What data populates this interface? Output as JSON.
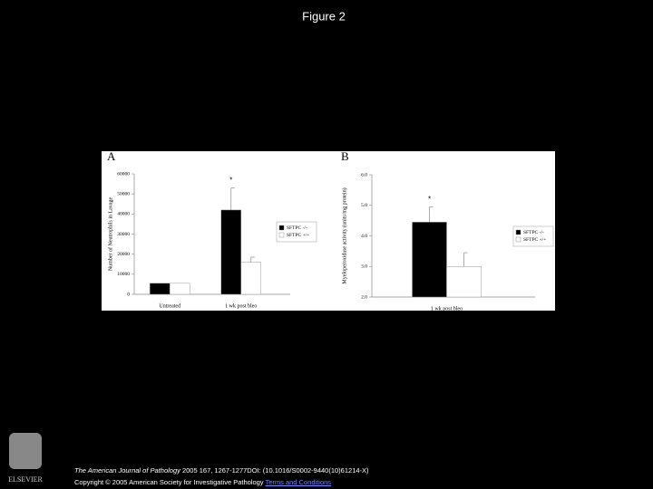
{
  "title": "Figure 2",
  "chart_data": [
    {
      "type": "bar",
      "panel": "A",
      "ylabel": "Number of Neutrophils in Lavage",
      "categories": [
        "Untreated",
        "1 wk post bleo"
      ],
      "series": [
        {
          "name": "SFTPC -/-",
          "color": "#000000",
          "values": [
            5500,
            42000
          ],
          "errors": [
            0,
            11000
          ]
        },
        {
          "name": "SFTPC +/+",
          "color": "#ffffff",
          "values": [
            5500,
            16000
          ],
          "errors": [
            0,
            2500
          ]
        }
      ],
      "annotation": "*",
      "ylim": [
        0,
        60000
      ],
      "yticks": [
        0,
        10000,
        20000,
        30000,
        40000,
        50000,
        60000
      ]
    },
    {
      "type": "bar",
      "panel": "B",
      "ylabel": "Myeloperoxidase activity (units/mg protein)",
      "categories": [
        "1 wk post bleo"
      ],
      "series": [
        {
          "name": "SFTPC -/-",
          "color": "#000000",
          "values": [
            4.45
          ],
          "errors": [
            0.5
          ]
        },
        {
          "name": "SFTPC +/+",
          "color": "#ffffff",
          "values": [
            3.0
          ],
          "errors": [
            0.45
          ]
        }
      ],
      "annotation": "*",
      "ylim": [
        2,
        6
      ],
      "yticks": [
        {
          "value": 2,
          "label": "2.0"
        },
        {
          "value": 3,
          "label": "3.0"
        },
        {
          "value": 4,
          "label": "4.0"
        },
        {
          "value": 5,
          "label": "5.0"
        },
        {
          "value": 6,
          "label": "6.0"
        }
      ]
    }
  ],
  "footer": {
    "journal": "The American Journal of Pathology",
    "citation": "2005 167, 1267-1277DOI: (10.1016/S0002-9440(10)61214-X)",
    "copyright": "Copyright © 2005 American Society for Investigative Pathology",
    "terms": "Terms and Conditions"
  },
  "logo_text": "ELSEVIER"
}
